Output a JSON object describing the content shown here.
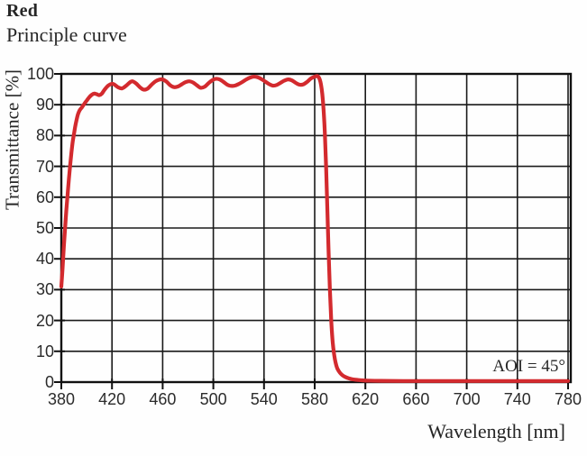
{
  "header": {
    "title": "Red",
    "subtitle": "Principle curve"
  },
  "chart_data": {
    "type": "line",
    "title": "Red",
    "subtitle": "Principle curve",
    "xlabel": "Wavelength [nm]",
    "ylabel": "Transmittance [%]",
    "annotation": "AOI = 45°",
    "xlim": [
      380,
      780
    ],
    "ylim": [
      0,
      100
    ],
    "xticks": [
      380,
      420,
      460,
      500,
      540,
      580,
      620,
      660,
      700,
      740,
      780
    ],
    "yticks": [
      0,
      10,
      20,
      30,
      40,
      50,
      60,
      70,
      80,
      90,
      100
    ],
    "grid": true,
    "legend_position": "none",
    "colors": {
      "line": "#d32a2e",
      "grid": "#1a1a1a",
      "axis": "#111111",
      "text": "#262626"
    },
    "series": [
      {
        "name": "Transmittance",
        "points": [
          [
            380,
            31
          ],
          [
            381,
            37
          ],
          [
            382,
            44
          ],
          [
            383,
            50
          ],
          [
            384,
            56
          ],
          [
            385,
            61
          ],
          [
            386,
            66
          ],
          [
            387,
            70.5
          ],
          [
            388,
            74.5
          ],
          [
            389,
            78
          ],
          [
            390,
            80.5
          ],
          [
            391,
            83
          ],
          [
            392,
            85
          ],
          [
            393,
            86.7
          ],
          [
            394,
            87.8
          ],
          [
            395,
            88.5
          ],
          [
            396,
            89
          ],
          [
            397,
            89.6
          ],
          [
            398,
            90.2
          ],
          [
            399,
            90.8
          ],
          [
            400,
            91.3
          ],
          [
            402,
            92.4
          ],
          [
            404,
            93.2
          ],
          [
            406,
            93.6
          ],
          [
            408,
            93.4
          ],
          [
            410,
            93.1
          ],
          [
            412,
            93.6
          ],
          [
            414,
            94.8
          ],
          [
            417,
            96.2
          ],
          [
            420,
            96.8
          ],
          [
            422,
            96.5
          ],
          [
            425,
            95.6
          ],
          [
            428,
            95.3
          ],
          [
            431,
            96.1
          ],
          [
            434,
            97.2
          ],
          [
            436,
            97.6
          ],
          [
            439,
            96.9
          ],
          [
            442,
            95.7
          ],
          [
            445,
            94.9
          ],
          [
            448,
            95.2
          ],
          [
            451,
            96.4
          ],
          [
            454,
            97.5
          ],
          [
            457,
            98.1
          ],
          [
            460,
            98.2
          ],
          [
            463,
            97.5
          ],
          [
            466,
            96.3
          ],
          [
            469,
            95.7
          ],
          [
            472,
            95.9
          ],
          [
            475,
            96.6
          ],
          [
            478,
            97.3
          ],
          [
            481,
            97.6
          ],
          [
            484,
            97.2
          ],
          [
            487,
            96.3
          ],
          [
            490,
            95.5
          ],
          [
            493,
            95.8
          ],
          [
            496,
            96.9
          ],
          [
            499,
            97.9
          ],
          [
            502,
            98.4
          ],
          [
            505,
            98.2
          ],
          [
            508,
            97.4
          ],
          [
            511,
            96.5
          ],
          [
            514,
            96.1
          ],
          [
            517,
            96.2
          ],
          [
            520,
            96.7
          ],
          [
            523,
            97.4
          ],
          [
            526,
            98.2
          ],
          [
            529,
            98.8
          ],
          [
            532,
            99.1
          ],
          [
            535,
            98.9
          ],
          [
            538,
            98.3
          ],
          [
            541,
            97.5
          ],
          [
            544,
            96.7
          ],
          [
            547,
            96.2
          ],
          [
            550,
            96.4
          ],
          [
            553,
            97.1
          ],
          [
            556,
            97.8
          ],
          [
            559,
            98.2
          ],
          [
            562,
            97.9
          ],
          [
            565,
            97.1
          ],
          [
            568,
            96.5
          ],
          [
            571,
            96.6
          ],
          [
            574,
            97.4
          ],
          [
            577,
            98.5
          ],
          [
            580,
            99.1
          ],
          [
            582,
            99.3
          ],
          [
            583,
            99
          ],
          [
            584,
            98.2
          ],
          [
            585,
            96.5
          ],
          [
            586,
            93.5
          ],
          [
            587,
            88.5
          ],
          [
            588,
            81
          ],
          [
            589,
            70
          ],
          [
            590,
            56
          ],
          [
            591,
            42
          ],
          [
            592,
            30
          ],
          [
            593,
            20.5
          ],
          [
            594,
            14
          ],
          [
            595,
            10
          ],
          [
            596,
            7.3
          ],
          [
            597,
            5.5
          ],
          [
            598,
            4.3
          ],
          [
            600,
            3
          ],
          [
            602,
            2.2
          ],
          [
            604,
            1.7
          ],
          [
            607,
            1.2
          ],
          [
            610,
            0.9
          ],
          [
            614,
            0.7
          ],
          [
            618,
            0.55
          ],
          [
            624,
            0.45
          ],
          [
            632,
            0.4
          ],
          [
            650,
            0.35
          ],
          [
            680,
            0.35
          ],
          [
            720,
            0.35
          ],
          [
            780,
            0.35
          ]
        ]
      }
    ]
  }
}
